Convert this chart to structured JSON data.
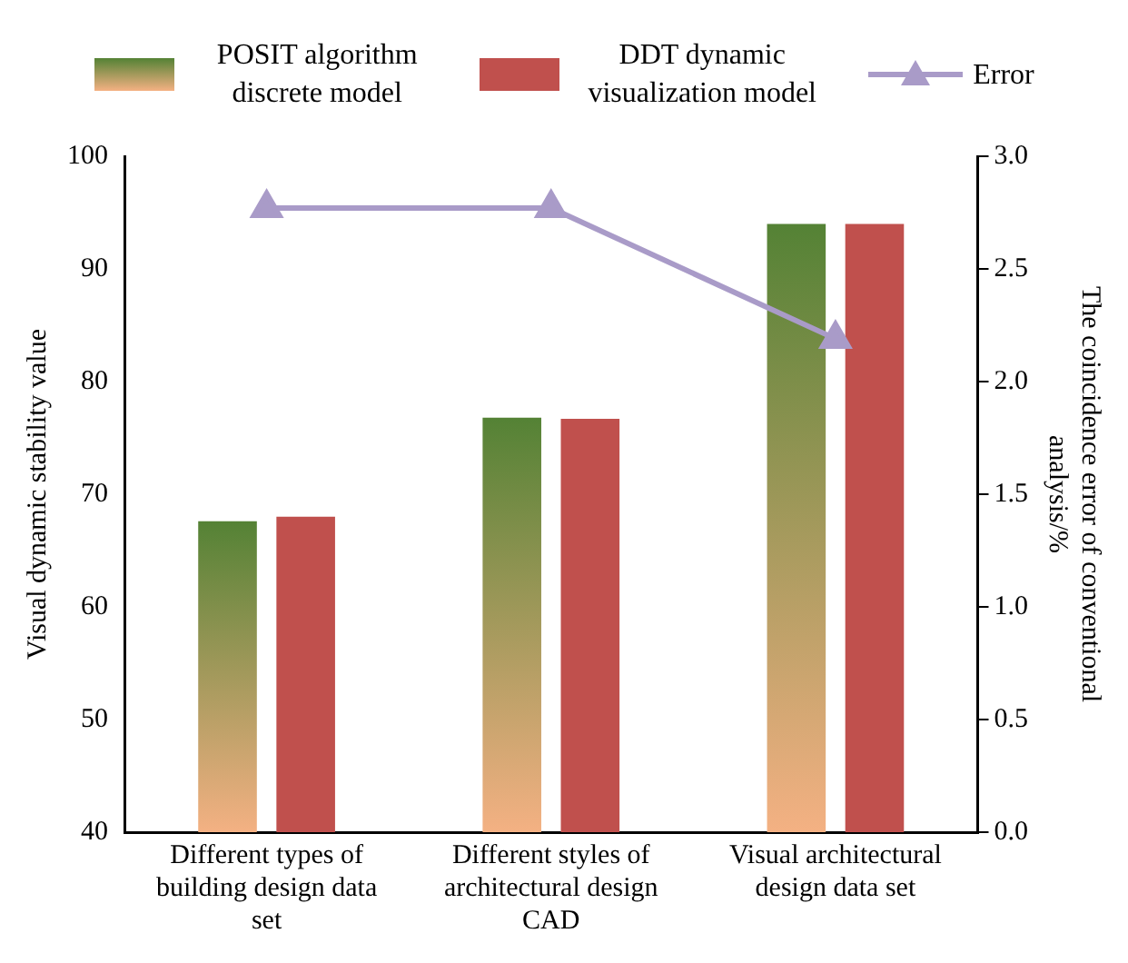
{
  "chart_data": {
    "type": "bar",
    "categories": [
      "Different types of building design data set",
      "Different styles of architectural design CAD",
      "Visual architectural design data set"
    ],
    "series": [
      {
        "name": "POSIT algorithm discrete model",
        "color": "#548235",
        "values": [
          67.6,
          76.8,
          94
        ]
      },
      {
        "name": "DDT dynamic visualization model",
        "color": "#c0504d",
        "values": [
          68,
          76.7,
          94
        ]
      },
      {
        "name": "Error",
        "type": "line",
        "axis": "y2",
        "color": "#a99bc8",
        "values": [
          2.77,
          2.77,
          2.19
        ]
      }
    ],
    "ylabel": "Visual dynamic stability value",
    "y2label": "The coincidence error of conventional analysis/%",
    "ylim": [
      40,
      100
    ],
    "yticks": [
      40,
      50,
      60,
      70,
      80,
      90,
      100
    ],
    "y2lim": [
      0,
      3
    ],
    "y2ticks": [
      {
        "value": 0,
        "label": "0.0"
      },
      0.5,
      {
        "value": 1,
        "label": "1.0"
      },
      1.5,
      {
        "value": 2,
        "label": "2.0"
      },
      2.5,
      {
        "value": 3,
        "label": "3.0"
      }
    ],
    "grid": false,
    "legend": "top",
    "marker": "triangle"
  }
}
